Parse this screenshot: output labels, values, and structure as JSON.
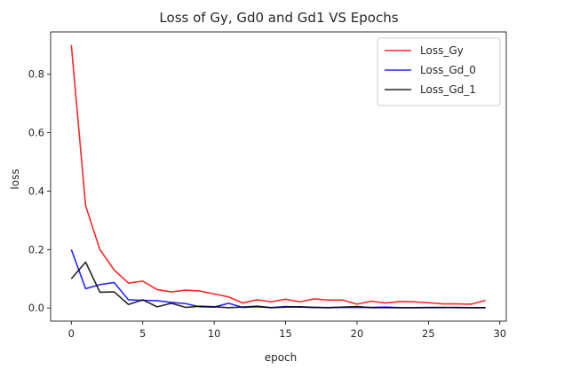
{
  "chart_data": {
    "type": "line",
    "title": "Loss of Gy, Gd0 and Gd1 VS Epochs",
    "xlabel": "epoch",
    "ylabel": "loss",
    "xlim": [
      -1.45,
      30.45
    ],
    "ylim": [
      -0.045,
      0.945
    ],
    "xticks": [
      0,
      5,
      10,
      15,
      20,
      25,
      30
    ],
    "yticks": [
      0.0,
      0.2,
      0.4,
      0.6,
      0.8
    ],
    "xtick_labels": [
      "0",
      "5",
      "10",
      "15",
      "20",
      "25",
      "30"
    ],
    "ytick_labels": [
      "0.0",
      "0.2",
      "0.4",
      "0.6",
      "0.8"
    ],
    "grid": false,
    "legend_position": "top-right",
    "x": [
      0,
      1,
      2,
      3,
      4,
      5,
      6,
      7,
      8,
      9,
      10,
      11,
      12,
      13,
      14,
      15,
      16,
      17,
      18,
      19,
      20,
      21,
      22,
      23,
      24,
      25,
      26,
      27,
      28,
      29
    ],
    "series": [
      {
        "name": "Loss_Gy",
        "color": "#ff0000",
        "values": [
          0.9,
          0.35,
          0.2,
          0.13,
          0.085,
          0.092,
          0.063,
          0.055,
          0.061,
          0.058,
          0.048,
          0.038,
          0.017,
          0.028,
          0.021,
          0.03,
          0.021,
          0.031,
          0.027,
          0.027,
          0.013,
          0.023,
          0.017,
          0.022,
          0.021,
          0.018,
          0.014,
          0.014,
          0.013,
          0.026
        ]
      },
      {
        "name": "Loss_Gd_0",
        "color": "#0000ff",
        "values": [
          0.2,
          0.066,
          0.08,
          0.087,
          0.028,
          0.026,
          0.025,
          0.019,
          0.015,
          0.004,
          0.003,
          0.016,
          0.002,
          0.004,
          0.001,
          0.005,
          0.003,
          0.002,
          0.001,
          0.002,
          0.002,
          0.002,
          0.003,
          0.001,
          0.001,
          0.001,
          0.001,
          0.002,
          0.001,
          0.001
        ]
      },
      {
        "name": "Loss_Gd_1",
        "color": "#000000",
        "values": [
          0.1,
          0.157,
          0.054,
          0.055,
          0.012,
          0.028,
          0.004,
          0.016,
          0.002,
          0.006,
          0.004,
          0.001,
          0.003,
          0.006,
          0.001,
          0.003,
          0.004,
          0.002,
          0.001,
          0.003,
          0.005,
          0.001,
          0.001,
          0.001,
          0.001,
          0.002,
          0.002,
          0.001,
          0.001,
          0.001
        ]
      }
    ]
  }
}
